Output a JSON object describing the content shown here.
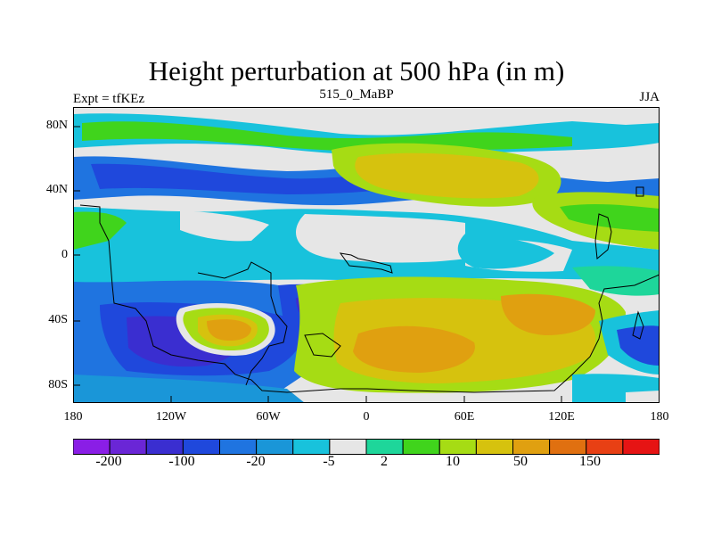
{
  "title": "Height perturbation at 500 hPa (in m)",
  "subtitle_left": "Expt = tfKEz",
  "subtitle_center": "515_0_MaBP",
  "subtitle_right": "JJA",
  "y_ticks": [
    "80N",
    "40N",
    "0",
    "40S",
    "80S"
  ],
  "x_ticks": [
    "180",
    "120W",
    "60W",
    "0",
    "60E",
    "120E",
    "180"
  ],
  "colorbar": {
    "labels": [
      "-200",
      "-100",
      "-20",
      "-5",
      "2",
      "10",
      "50",
      "150"
    ],
    "colors": [
      "#8a1ee6",
      "#6a26d6",
      "#3a2ed0",
      "#1f48dc",
      "#1f74e0",
      "#1a96d8",
      "#18c2dc",
      "#e6e6e6",
      "#1ed69a",
      "#40d41c",
      "#a6dc14",
      "#d6c20e",
      "#e0a010",
      "#e07010",
      "#e84014",
      "#e61414"
    ]
  },
  "map": {
    "background": "#e6e6e6",
    "land_outline": "#000000"
  }
}
